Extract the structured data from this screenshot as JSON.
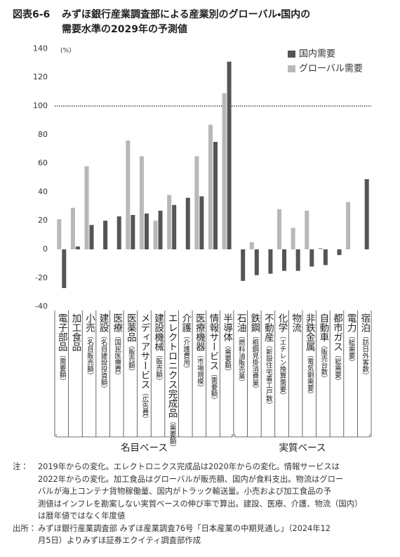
{
  "chart_data": {
    "type": "bar",
    "title_label": "図表6-6",
    "title": [
      "みずほ銀行産業調査部による産業別のグローバル・国内の",
      "需要水準の2029年の予測値"
    ],
    "y_unit": "(%)",
    "categories": [
      "電子部品",
      "加工食品",
      "小売",
      "建設",
      "医療",
      "医薬品",
      "メディアサービス",
      "建設機械",
      "エレクトロニクス完成品",
      "介護",
      "医療機器",
      "情報サービス",
      "半導体",
      "石油",
      "鉄鋼",
      "不動産",
      "化学",
      "物流",
      "非鉄金属",
      "自動車",
      "都市ガス",
      "電力",
      "宿泊"
    ],
    "category_subtitles": [
      "（需要額）",
      null,
      "（名目販売額）",
      "（名目建設投資額）",
      "（国民医療費）",
      "（販売額）",
      "（広告費）",
      "（販売額）",
      "（需要額）",
      "（介護費用）",
      "（市場規模）",
      "（需要額）",
      "（需要額）",
      "（燃料油販売量）",
      "（粗鋼見掛消費量）",
      "（新設住宅着工戸数）",
      "（エチレン換算需要）",
      null,
      "（電気銅需要）",
      "（販売台数）",
      "（総需要）",
      "（総需要）",
      "（訪日外客数）"
    ],
    "groups": [
      "名目ベース",
      "実質ベース"
    ],
    "series": [
      {
        "name": "グローバル需要",
        "color": "#b8b8b8",
        "values": [
          21,
          29,
          58,
          null,
          null,
          76,
          65,
          20,
          38,
          null,
          65,
          87,
          109,
          null,
          5,
          null,
          28,
          15,
          27,
          1,
          null,
          33,
          null
        ]
      },
      {
        "name": "国内需要",
        "color": "#555555",
        "values": [
          -27,
          2,
          17,
          20,
          23,
          24,
          25,
          27,
          31,
          36,
          37,
          75,
          131,
          -22,
          -18,
          -17,
          -15,
          -15,
          -12,
          -11,
          -4,
          null,
          49
        ]
      }
    ],
    "ylim": [
      -40,
      140
    ],
    "yticks": [
      -40,
      -20,
      0,
      20,
      40,
      60,
      80,
      100,
      120,
      140
    ],
    "reference_line": 100,
    "legend": "upper right",
    "notes_label": "注：",
    "notes": [
      "2019年からの変化。エレクトロニクス完成品は2020年からの変化。情報サービスは",
      "2022年からの変化。加工食品はグローバルが販売額、国内が食料支出。物流はグロー",
      "バルが海上コンテナ貨物稼働量、国内がトラック輸送量。小売および加工食品の予",
      "測値はインフレを勘案しない実質ベースの伸び率で算出。建設、医療、介護、物流（国内）",
      "は暦年値ではなく年度値"
    ],
    "source_label": "出所：",
    "source": [
      "みずほ銀行産業調査部 みずほ産業調査76号「日本産業の中期見通し」（2024年12",
      "月5日）よりみずほ証券エクイティ調査部作成"
    ]
  }
}
